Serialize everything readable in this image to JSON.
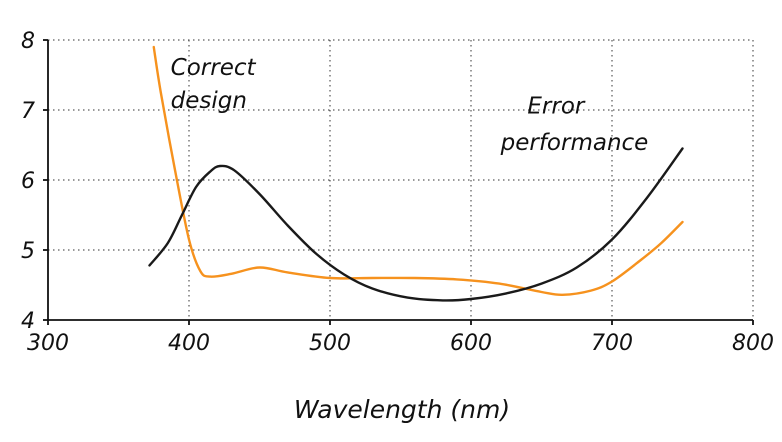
{
  "chart_data": {
    "type": "line",
    "title": "",
    "xlabel": "Wavelength (nm)",
    "ylabel": "",
    "xlim": [
      300,
      800
    ],
    "ylim": [
      4,
      8
    ],
    "xticks": [
      300,
      400,
      500,
      600,
      700,
      800
    ],
    "yticks": [
      4,
      5,
      6,
      7,
      8
    ],
    "grid": "dotted",
    "legend_position": "none",
    "series": [
      {
        "name": "Correct design",
        "color": "#f6921e",
        "points": [
          [
            375,
            7.9
          ],
          [
            380,
            7.25
          ],
          [
            390,
            6.15
          ],
          [
            400,
            5.15
          ],
          [
            408,
            4.7
          ],
          [
            415,
            4.62
          ],
          [
            430,
            4.66
          ],
          [
            450,
            4.75
          ],
          [
            470,
            4.68
          ],
          [
            500,
            4.6
          ],
          [
            530,
            4.6
          ],
          [
            560,
            4.6
          ],
          [
            590,
            4.58
          ],
          [
            620,
            4.52
          ],
          [
            650,
            4.4
          ],
          [
            665,
            4.36
          ],
          [
            685,
            4.42
          ],
          [
            700,
            4.55
          ],
          [
            720,
            4.85
          ],
          [
            735,
            5.1
          ],
          [
            750,
            5.4
          ]
        ]
      },
      {
        "name": "Error performance",
        "color": "#1a1a1a",
        "points": [
          [
            372,
            4.78
          ],
          [
            385,
            5.1
          ],
          [
            395,
            5.5
          ],
          [
            405,
            5.9
          ],
          [
            415,
            6.12
          ],
          [
            422,
            6.2
          ],
          [
            432,
            6.14
          ],
          [
            450,
            5.8
          ],
          [
            470,
            5.35
          ],
          [
            490,
            4.95
          ],
          [
            510,
            4.65
          ],
          [
            530,
            4.45
          ],
          [
            555,
            4.32
          ],
          [
            580,
            4.28
          ],
          [
            600,
            4.3
          ],
          [
            625,
            4.38
          ],
          [
            650,
            4.52
          ],
          [
            675,
            4.75
          ],
          [
            700,
            5.15
          ],
          [
            725,
            5.75
          ],
          [
            750,
            6.45
          ]
        ]
      }
    ],
    "annotations": [
      {
        "text": "Correct",
        "x": 387,
        "y": 7.5,
        "anchor": "start"
      },
      {
        "text": "design",
        "x": 387,
        "y": 7.03,
        "anchor": "start"
      },
      {
        "text": "Error",
        "x": 640,
        "y": 6.95,
        "anchor": "start"
      },
      {
        "text": "performance",
        "x": 621,
        "y": 6.43,
        "anchor": "start"
      }
    ],
    "grid_color": "#333333",
    "axis_color": "#111111"
  }
}
